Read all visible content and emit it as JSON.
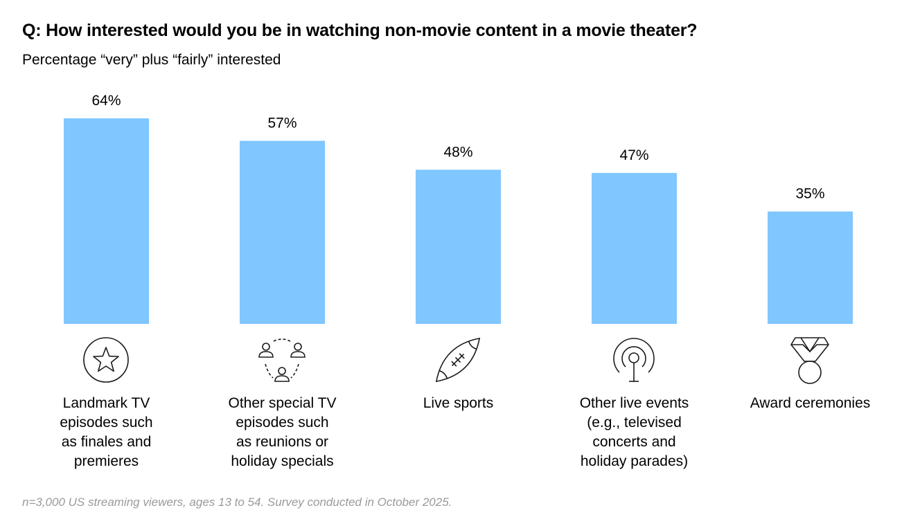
{
  "header": {
    "title": "Q: How interested would you be in watching non-movie content in a movie theater?",
    "subtitle": "Percentage “very” plus “fairly” interested"
  },
  "footnote": "n=3,000 US streaming viewers, ages 13 to 54. Survey conducted in October 2025.",
  "colors": {
    "bar": "#80c6ff",
    "text": "#000000",
    "footnote": "#9a9a9a"
  },
  "chart_data": {
    "type": "bar",
    "title": "Q: How interested would you be in watching non-movie content in a movie theater?",
    "subtitle": "Percentage “very” plus “fairly” interested",
    "xlabel": "",
    "ylabel": "",
    "ylim": [
      0,
      64
    ],
    "grid": false,
    "categories": [
      "Landmark TV episodes such as finales and premieres",
      "Other special TV episodes such as reunions or holiday specials",
      "Live sports",
      "Other live events (e.g., televised concerts and holiday parades)",
      "Award ceremonies"
    ],
    "category_lines": [
      [
        "Landmark TV",
        "episodes such",
        "as finales and",
        "premieres"
      ],
      [
        "Other special TV",
        "episodes such",
        "as reunions or",
        "holiday specials"
      ],
      [
        "Live sports"
      ],
      [
        "Other live events",
        "(e.g., televised",
        "concerts and",
        "holiday parades)"
      ],
      [
        "Award ceremonies"
      ]
    ],
    "values": [
      64,
      57,
      48,
      47,
      35
    ],
    "value_labels": [
      "64%",
      "57%",
      "48%",
      "47%",
      "35%"
    ],
    "icons": [
      "star-icon",
      "people-icon",
      "football-icon",
      "broadcast-icon",
      "medal-icon"
    ]
  }
}
